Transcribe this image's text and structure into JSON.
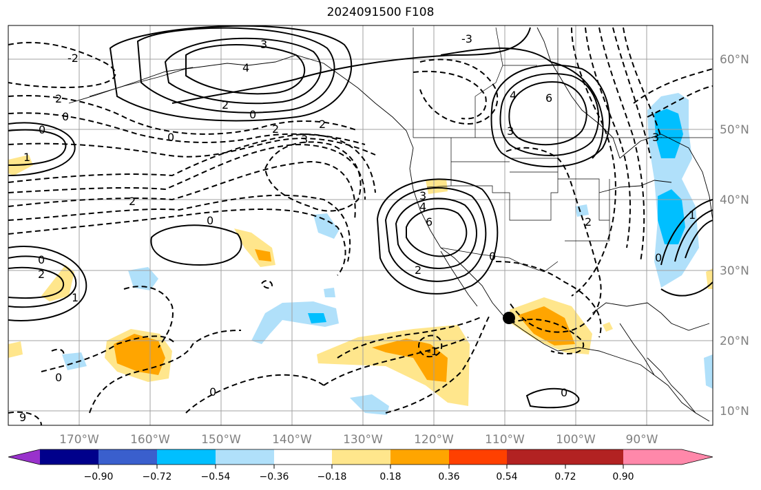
{
  "title": "2024091500 F108",
  "map": {
    "lat_labels": [
      "60°N",
      "50°N",
      "40°N",
      "30°N",
      "20°N",
      "10°N"
    ],
    "lon_labels": [
      "170°W",
      "160°W",
      "150°W",
      "140°W",
      "130°W",
      "120°W",
      "110°W",
      "100°W",
      "90°W"
    ],
    "contour_labels": [
      "3",
      "4",
      "2",
      "0",
      "2",
      "2",
      "3",
      "-3",
      "0",
      "0",
      "2",
      "0",
      "1",
      "-2",
      "0",
      "2",
      "0",
      "2",
      "0",
      "4",
      "6",
      "3",
      "3",
      "4",
      "6",
      "2",
      "0",
      "2",
      "0",
      "3",
      "1",
      "1",
      "0",
      "-1",
      "0",
      "9"
    ],
    "storm_marker": "black-dot"
  },
  "colorbar": {
    "ticks": [
      "−0.90",
      "−0.72",
      "−0.54",
      "−0.36",
      "−0.18",
      "0.18",
      "0.36",
      "0.54",
      "0.72",
      "0.90"
    ],
    "colors": [
      "#9932cc",
      "#00008b",
      "#3a5fcd",
      "#00bfff",
      "#b0e0fa",
      "#ffffff",
      "#ffe68c",
      "#ffa500",
      "#ff4000",
      "#b22222",
      "#ff88aa"
    ]
  }
}
